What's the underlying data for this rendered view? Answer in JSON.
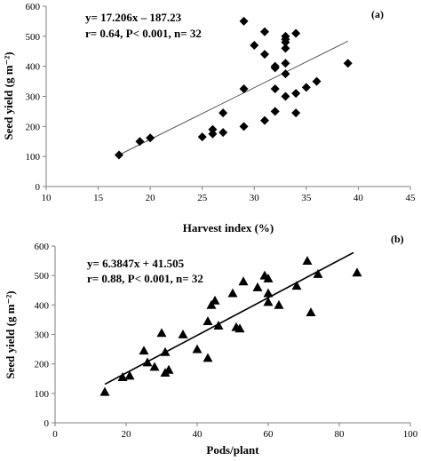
{
  "chart_data": [
    {
      "type": "scatter",
      "panel_label": "(a)",
      "xlabel": "Harvest index (%)",
      "ylabel": "Seed yield (g m⁻²)",
      "xlim": [
        10,
        45
      ],
      "ylim": [
        0,
        600
      ],
      "xticks": [
        10,
        15,
        20,
        25,
        30,
        35,
        40,
        45
      ],
      "yticks": [
        0,
        100,
        200,
        300,
        400,
        500,
        600
      ],
      "marker": "diamond",
      "annotations": [
        "y= 17.206x – 187.23",
        "r= 0.64, P< 0.001, n= 32"
      ],
      "trendline": {
        "slope": 17.206,
        "intercept": -187.23,
        "x_range": [
          17,
          39
        ]
      },
      "points": [
        [
          17,
          105
        ],
        [
          19,
          150
        ],
        [
          20,
          162
        ],
        [
          25,
          165
        ],
        [
          26,
          175
        ],
        [
          26,
          190
        ],
        [
          27,
          180
        ],
        [
          27,
          245
        ],
        [
          29,
          200
        ],
        [
          29,
          325
        ],
        [
          29,
          550
        ],
        [
          30,
          470
        ],
        [
          31,
          440
        ],
        [
          31,
          515
        ],
        [
          31,
          220
        ],
        [
          32,
          400
        ],
        [
          32,
          395
        ],
        [
          32,
          325
        ],
        [
          32,
          250
        ],
        [
          33,
          500
        ],
        [
          33,
          490
        ],
        [
          33,
          480
        ],
        [
          33,
          460
        ],
        [
          33,
          410
        ],
        [
          33,
          375
        ],
        [
          33,
          300
        ],
        [
          34,
          510
        ],
        [
          34,
          310
        ],
        [
          34,
          245
        ],
        [
          35,
          330
        ],
        [
          36,
          350
        ],
        [
          39,
          410
        ]
      ]
    },
    {
      "type": "scatter",
      "panel_label": "(b)",
      "xlabel": "Pods/plant",
      "ylabel": "Seed yield (g m⁻²)",
      "xlim": [
        0,
        100
      ],
      "ylim": [
        0,
        600
      ],
      "xticks": [
        0,
        20,
        40,
        60,
        80,
        100
      ],
      "yticks": [
        0,
        100,
        200,
        300,
        400,
        500,
        600
      ],
      "marker": "triangle",
      "annotations": [
        "y= 6.3847x + 41.505",
        "r= 0.88, P< 0.001, n= 32"
      ],
      "trendline": {
        "slope": 6.3847,
        "intercept": 41.505,
        "x_range": [
          14,
          84
        ]
      },
      "points": [
        [
          14,
          105
        ],
        [
          19,
          155
        ],
        [
          21,
          160
        ],
        [
          25,
          245
        ],
        [
          26,
          205
        ],
        [
          28,
          190
        ],
        [
          30,
          305
        ],
        [
          31,
          240
        ],
        [
          31,
          170
        ],
        [
          32,
          180
        ],
        [
          36,
          300
        ],
        [
          40,
          250
        ],
        [
          43,
          220
        ],
        [
          43,
          345
        ],
        [
          44,
          400
        ],
        [
          45,
          415
        ],
        [
          46,
          330
        ],
        [
          50,
          440
        ],
        [
          51,
          325
        ],
        [
          52,
          320
        ],
        [
          53,
          480
        ],
        [
          57,
          460
        ],
        [
          59,
          500
        ],
        [
          60,
          490
        ],
        [
          60,
          410
        ],
        [
          60,
          440
        ],
        [
          63,
          400
        ],
        [
          68,
          465
        ],
        [
          71,
          550
        ],
        [
          72,
          375
        ],
        [
          74,
          505
        ],
        [
          85,
          510
        ]
      ]
    }
  ]
}
